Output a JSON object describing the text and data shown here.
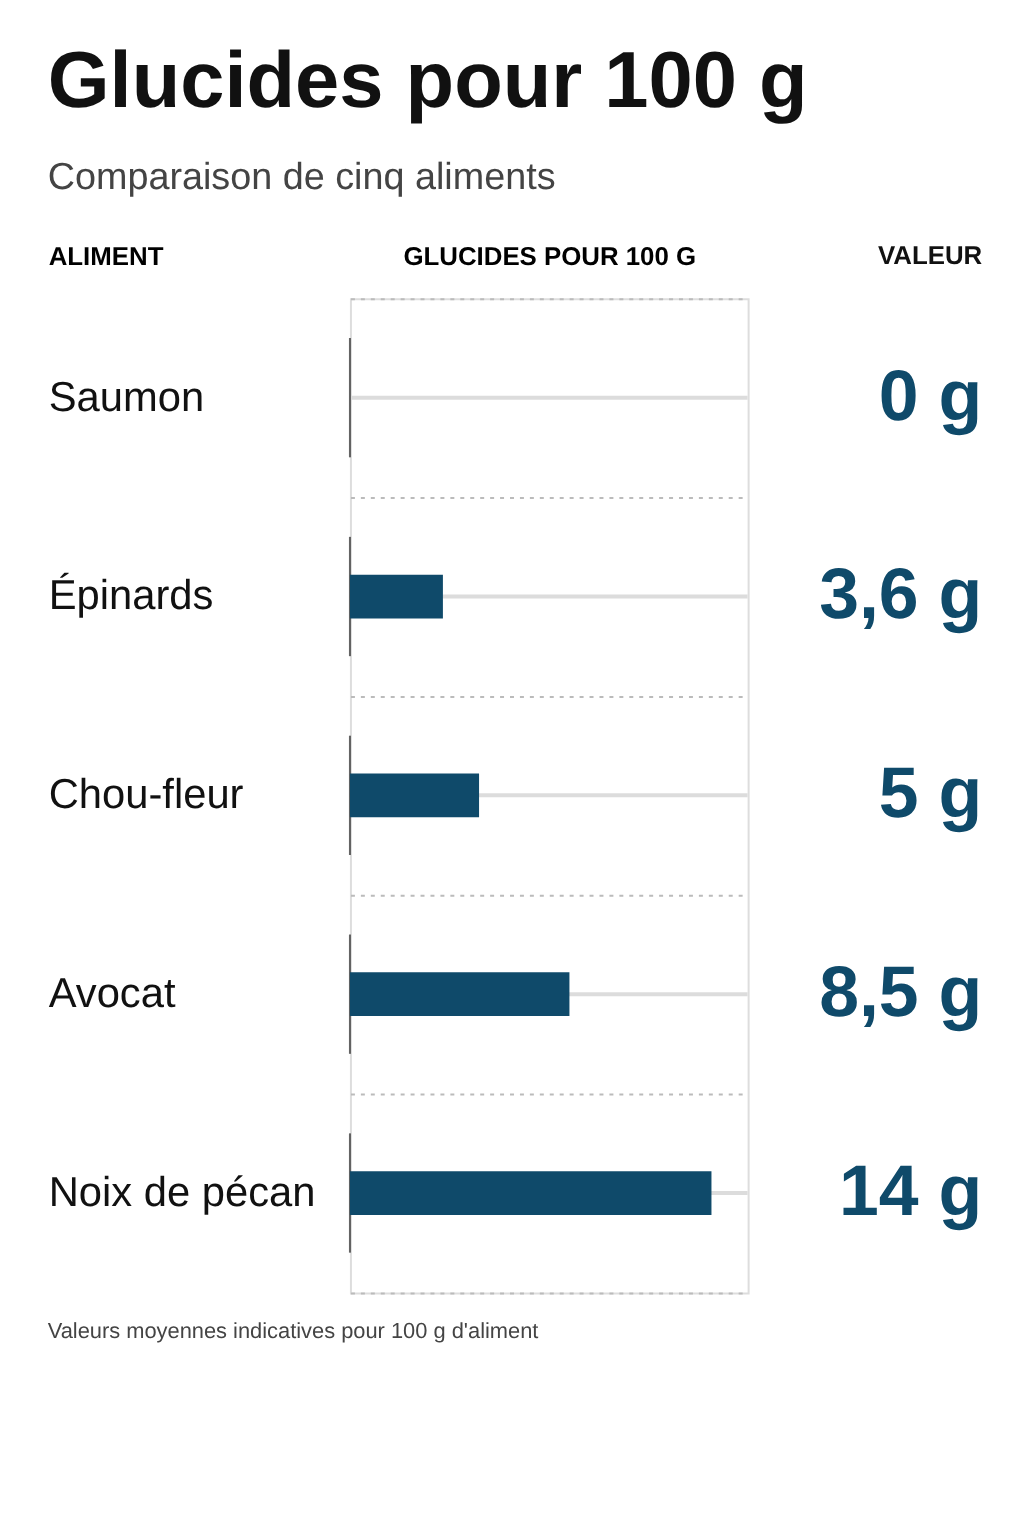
{
  "chart_data": {
    "type": "bar",
    "orientation": "horizontal",
    "title": "Glucides pour 100 g",
    "subtitle": "Comparaison de cinq aliments",
    "ylabel": "ALIMENT",
    "xlabel": "GLUCIDES POUR 100 G",
    "categories": [
      "Saumon",
      "Épinards",
      "Chou-fleur",
      "Avocat",
      "Noix de pécan"
    ],
    "values": [
      0,
      3.6,
      5,
      8.5,
      14
    ],
    "color": "#0f4a6a",
    "value_labels": [
      "0 g",
      "3,6 g",
      "5 g",
      "8,5 g",
      "14 g"
    ],
    "annotations": [
      "VALEUR",
      "Valeurs moyennes indicatives pour 100 g d'aliment"
    ],
    "grid": "y"
  }
}
